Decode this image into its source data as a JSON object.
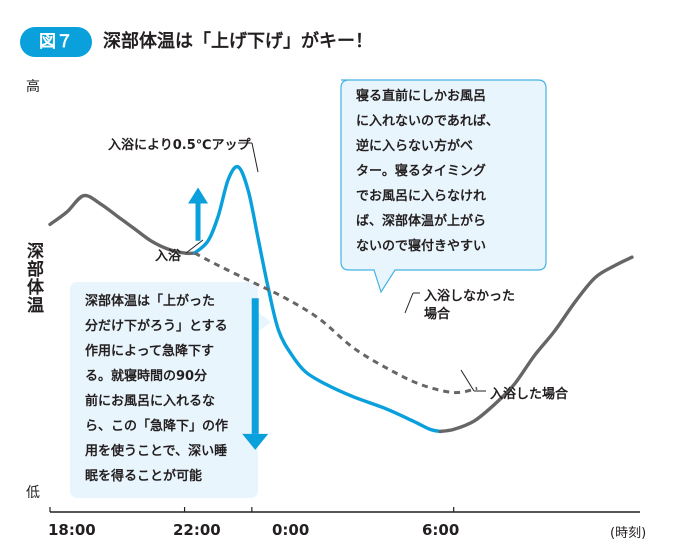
{
  "header": {
    "badge": "図７",
    "title": "深部体温は「上げ下げ」がキー！"
  },
  "colors": {
    "accent": "#0aa0dc",
    "grey_line": "#666666",
    "callout_fill": "#e9f5fc",
    "callout_border": "#45b2e3"
  },
  "chart_data": {
    "type": "line",
    "title": "深部体温は「上げ下げ」がキー！",
    "y_axis": {
      "label": "深部体温",
      "high_label": "高",
      "low_label": "低",
      "ylim": [
        0,
        100
      ]
    },
    "x_axis": {
      "unit_label": "(時刻)",
      "ticks": [
        {
          "x": 0,
          "label": "18:00"
        },
        {
          "x": 4,
          "label": "22:00"
        },
        {
          "x": 6,
          "label": "0:00"
        },
        {
          "x": 12,
          "label": "6:00"
        }
      ],
      "xlim": [
        0,
        17.3
      ]
    },
    "series": [
      {
        "name": "baseline_before_bath",
        "style": "grey-solid",
        "points": [
          [
            0,
            66
          ],
          [
            0.5,
            69
          ],
          [
            1,
            73
          ],
          [
            1.5,
            71
          ],
          [
            2,
            68
          ],
          [
            2.5,
            65
          ],
          [
            3,
            62
          ],
          [
            3.5,
            60
          ],
          [
            4,
            59
          ],
          [
            4.3,
            59
          ]
        ]
      },
      {
        "name": "入浴した場合",
        "style": "blue-solid",
        "points": [
          [
            4.3,
            59
          ],
          [
            4.7,
            62
          ],
          [
            5,
            68
          ],
          [
            5.3,
            77
          ],
          [
            5.6,
            80
          ],
          [
            5.9,
            74
          ],
          [
            6.2,
            62
          ],
          [
            6.5,
            50
          ],
          [
            6.8,
            40
          ],
          [
            7.2,
            34
          ],
          [
            7.6,
            30
          ],
          [
            8.2,
            27
          ],
          [
            9,
            24
          ],
          [
            10,
            21
          ],
          [
            10.8,
            18
          ],
          [
            11.3,
            16
          ],
          [
            11.6,
            15.5
          ]
        ]
      },
      {
        "name": "入浴した場合_後半",
        "style": "grey-solid",
        "points": [
          [
            11.6,
            15.5
          ],
          [
            12,
            16
          ],
          [
            12.6,
            18
          ],
          [
            13.2,
            22
          ],
          [
            13.8,
            27
          ],
          [
            14.4,
            34
          ],
          [
            15,
            40
          ],
          [
            15.6,
            47
          ],
          [
            16.2,
            53
          ],
          [
            16.8,
            56
          ],
          [
            17.3,
            58
          ]
        ]
      },
      {
        "name": "入浴しなかった場合",
        "style": "grey-dashed",
        "points": [
          [
            4.3,
            59
          ],
          [
            5,
            56
          ],
          [
            6,
            52
          ],
          [
            7,
            48
          ],
          [
            8,
            43
          ],
          [
            9,
            36
          ],
          [
            10,
            31
          ],
          [
            11,
            27
          ],
          [
            12,
            25
          ],
          [
            12.7,
            26
          ]
        ]
      }
    ],
    "arrows": [
      {
        "name": "up",
        "x": 4.4,
        "from": 62,
        "to": 75
      },
      {
        "name": "down",
        "x": 6.1,
        "from": 48,
        "to": 11
      }
    ],
    "annotations": {
      "peak": "入浴により0.5℃アップ",
      "bath": "入浴",
      "no_bath_line1": "入浴しなかった",
      "no_bath_line2": "場合",
      "with_bath": "入浴した場合"
    },
    "callout_right": [
      "寝る直前にしかお風呂",
      "に入れないのであれば、",
      "逆に入らない方がベ",
      "ター。寝るタイミング",
      "でお風呂に入らなけれ",
      "ば、深部体温が上がら",
      "ないので寝付きやすい"
    ],
    "callout_left": [
      "深部体温は「上がった",
      "分だけ下がろう」とする",
      "作用によって急降下す",
      "る。就寝時間の90分",
      "前にお風呂に入れるな",
      "ら、この「急降下」の作",
      "用を使うことで、深い睡",
      "眠を得ることが可能"
    ]
  }
}
